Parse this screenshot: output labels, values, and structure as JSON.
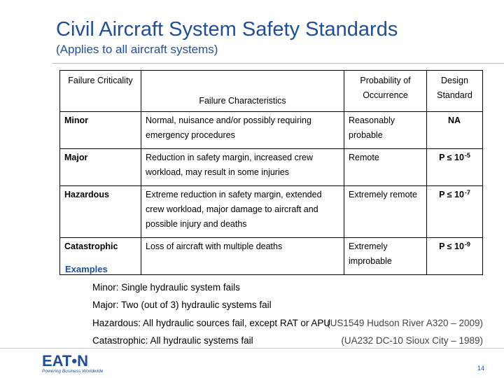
{
  "slide": {
    "title": "Civil Aircraft System Safety Standards",
    "subtitle": "(Applies to all aircraft systems)",
    "page_number": "14"
  },
  "table": {
    "headers": {
      "criticality": "Failure Criticality",
      "characteristics": "Failure Characteristics",
      "probability": "Probability of Occurrence",
      "standard": "Design Standard"
    },
    "rows": [
      {
        "criticality": "Minor",
        "characteristics": "Normal, nuisance and/or possibly requiring emergency procedures",
        "probability": "Reasonably probable",
        "standard_text": "NA",
        "standard_exp": ""
      },
      {
        "criticality": "Major",
        "characteristics": "Reduction in safety margin, increased crew workload, may result in some injuries",
        "probability": "Remote",
        "standard_text": "P ≤ 10",
        "standard_exp": "-5"
      },
      {
        "criticality": "Hazardous",
        "characteristics": "Extreme reduction in safety margin, extended crew workload, major damage to aircraft and possible injury and deaths",
        "probability": "Extremely remote",
        "standard_text": "P ≤ 10",
        "standard_exp": "-7"
      },
      {
        "criticality": "Catastrophic",
        "characteristics": "Loss of aircraft with multiple deaths",
        "probability": "Extremely improbable",
        "standard_text": "P ≤ 10",
        "standard_exp": "-9"
      }
    ]
  },
  "examples": {
    "heading": "Examples",
    "items": [
      {
        "text": "Minor: Single hydraulic system fails",
        "ref": ""
      },
      {
        "text": "Major: Two (out of 3) hydraulic systems fail",
        "ref": ""
      },
      {
        "text": "Hazardous: All hydraulic sources fail, except RAT or APU",
        "ref": "(US1549 Hudson River A320 – 2009)"
      },
      {
        "text": "Catastrophic: All hydraulic systems fail",
        "ref": "(UA232 DC-10 Sioux City – 1989)"
      }
    ]
  },
  "logo": {
    "wordmark": "EAT•N",
    "tagline": "Powering Business Worldwide"
  },
  "colors": {
    "accent": "#1f4e9c"
  }
}
